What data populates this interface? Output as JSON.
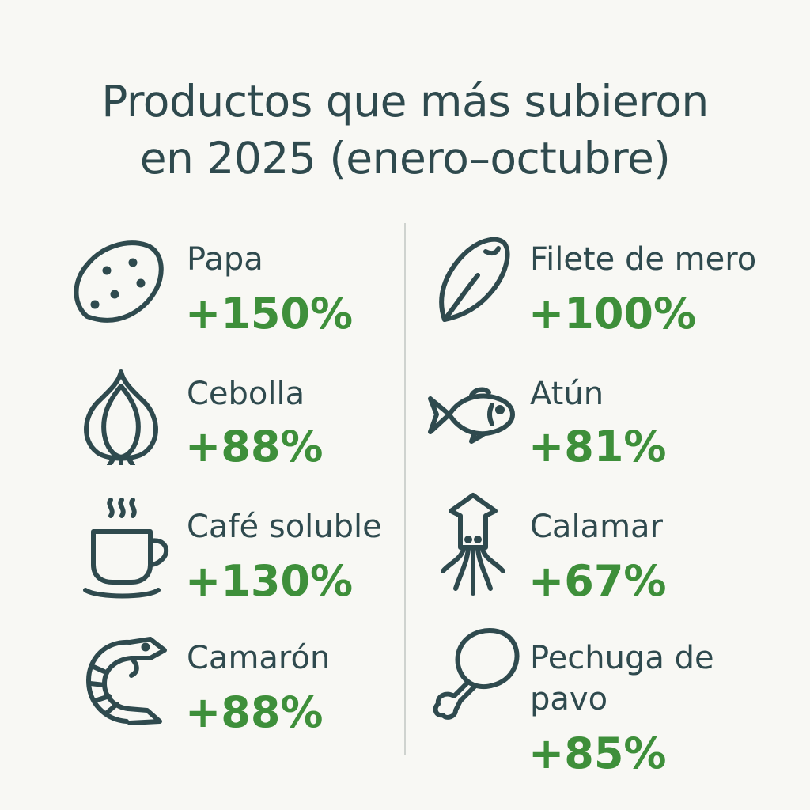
{
  "title": {
    "line1": "Productos que más subieron",
    "line2": "en 2025 (enero–octubre)"
  },
  "colors": {
    "text": "#2f4a4e",
    "accent": "#3e8f3a",
    "background": "#f8f8f4"
  },
  "left_column": [
    {
      "name": "Papa",
      "change": "+150%",
      "icon": "potato-icon"
    },
    {
      "name": "Cebolla",
      "change": "+88%",
      "icon": "onion-icon"
    },
    {
      "name": "Café soluble",
      "change": "+130%",
      "icon": "coffee-cup-icon"
    },
    {
      "name": "Camarón",
      "change": "+88%",
      "icon": "shrimp-icon"
    }
  ],
  "right_column": [
    {
      "name": "Filete de mero",
      "change": "+100%",
      "icon": "fish-fillet-icon"
    },
    {
      "name": "Atún",
      "change": "+81%",
      "icon": "fish-icon"
    },
    {
      "name": "Calamar",
      "change": "+67%",
      "icon": "squid-icon"
    },
    {
      "name": "Pechuga de pavo",
      "change": "+85%",
      "icon": "turkey-leg-icon"
    }
  ]
}
